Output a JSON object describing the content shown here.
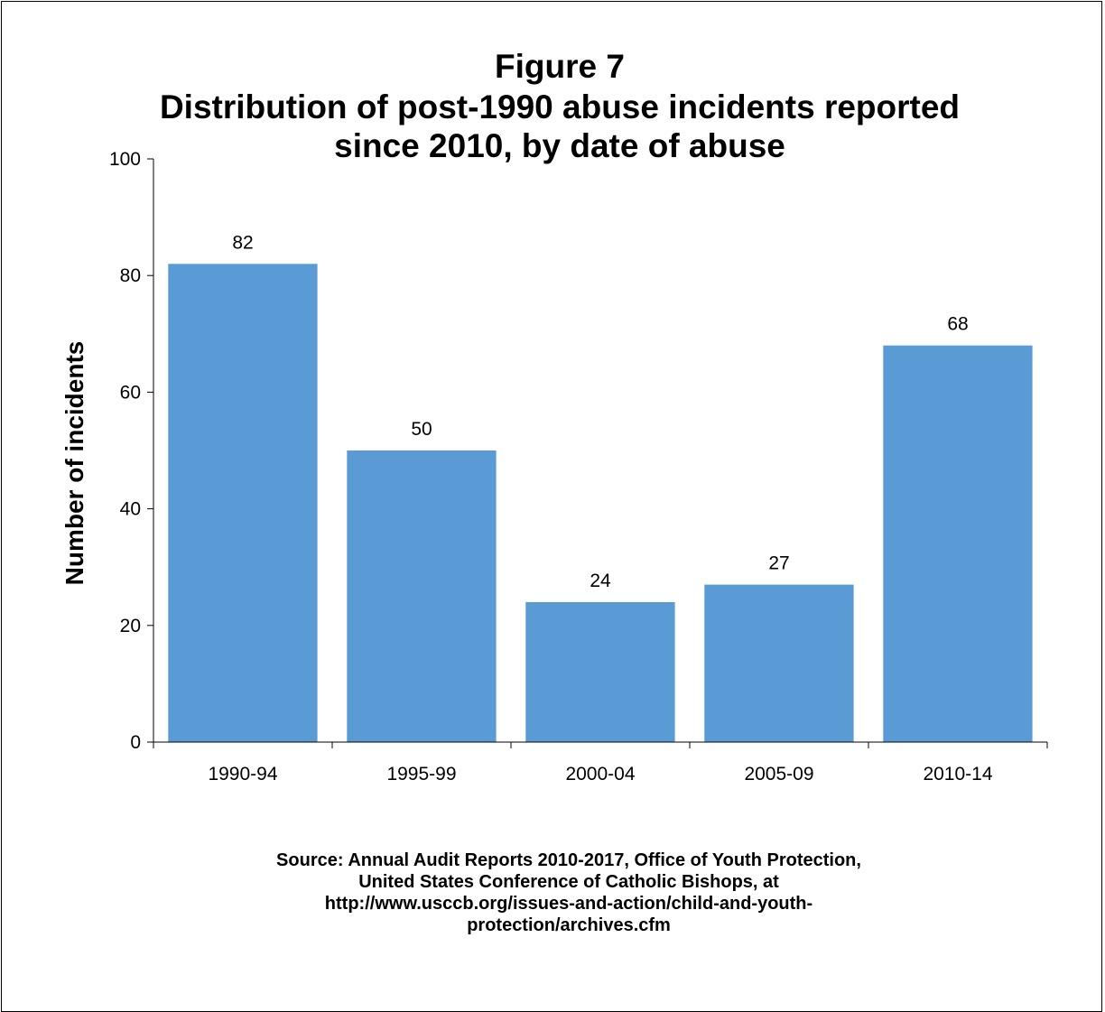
{
  "chart_data": {
    "type": "bar",
    "title_lines": [
      "Figure 7",
      "Distribution of post-1990 abuse incidents reported",
      "since 2010, by date of abuse"
    ],
    "categories": [
      "1990-94",
      "1995-99",
      "2000-04",
      "2005-09",
      "2010-14"
    ],
    "values": [
      82,
      50,
      24,
      27,
      68
    ],
    "ylabel": "Number of incidents",
    "xlabel": "",
    "ylim": [
      0,
      100
    ],
    "yticks": [
      0,
      20,
      40,
      60,
      80,
      100
    ],
    "bar_color": "#5B9BD5",
    "grid": false,
    "legend": "none"
  },
  "source_lines": [
    "Source: Annual Audit Reports 2010-2017, Office of Youth Protection,",
    "United States Conference of Catholic Bishops, at",
    "http://www.usccb.org/issues-and-action/child-and-youth-",
    "protection/archives.cfm"
  ]
}
